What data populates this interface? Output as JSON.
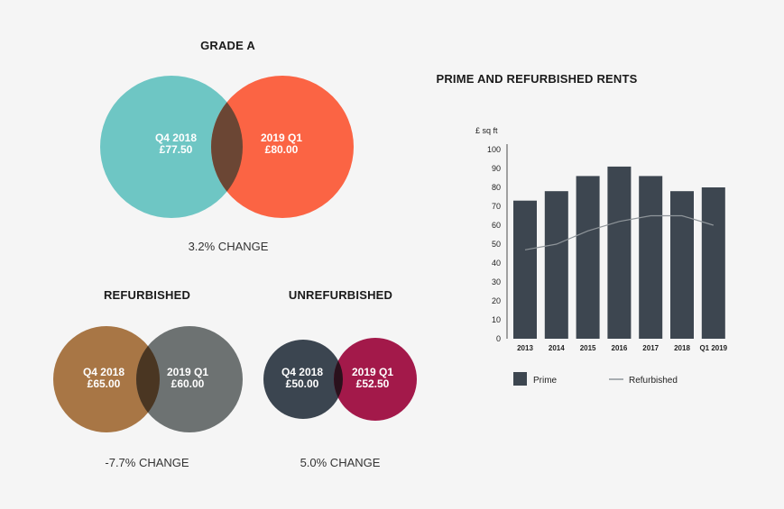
{
  "colors": {
    "grade_a_left": "#6ec6c4",
    "grade_a_right": "#fb6444",
    "grade_a_overlap": "#6b4634",
    "refurb_left": "#a87645",
    "refurb_right": "#6d7272",
    "refurb_overlap": "#4a3622",
    "unrefurb_left": "#3b4550",
    "unrefurb_right": "#a3194a",
    "unrefurb_overlap": "#2a111c",
    "prime_bar": "#3d4650",
    "refurb_line": "#8f959a"
  },
  "venns": {
    "grade_a": {
      "title": "GRADE A",
      "left_period": "Q4 2018",
      "left_value": "£77.50",
      "right_period": "2019 Q1",
      "right_value": "£80.00",
      "change": "3.2% CHANGE"
    },
    "refurbished": {
      "title": "REFURBISHED",
      "left_period": "Q4 2018",
      "left_value": "£65.00",
      "right_period": "2019 Q1",
      "right_value": "£60.00",
      "change": "-7.7% CHANGE"
    },
    "unrefurbished": {
      "title": "UNREFURBISHED",
      "left_period": "Q4 2018",
      "left_value": "£50.00",
      "right_period": "2019 Q1",
      "right_value": "£52.50",
      "change": "5.0% CHANGE"
    }
  },
  "chart_data": {
    "type": "bar",
    "title": "PRIME AND REFURBISHED RENTS",
    "ylabel": "£ sq ft",
    "ylim": [
      0,
      100
    ],
    "yticks": [
      0,
      10,
      20,
      30,
      40,
      50,
      60,
      70,
      80,
      90,
      100
    ],
    "categories": [
      "2013",
      "2014",
      "2015",
      "2016",
      "2017",
      "2018",
      "Q1 2019"
    ],
    "series": [
      {
        "name": "Prime",
        "type": "bar",
        "values": [
          73,
          78,
          86,
          91,
          86,
          78,
          80
        ]
      },
      {
        "name": "Refurbished",
        "type": "line",
        "values": [
          47,
          50,
          57,
          62,
          65,
          65,
          60
        ]
      }
    ],
    "legend_position": "bottom",
    "grid": false
  }
}
